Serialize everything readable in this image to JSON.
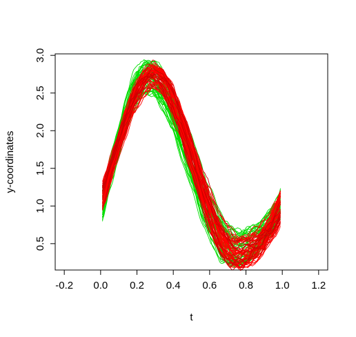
{
  "chart_data": {
    "type": "line",
    "title": "",
    "xlabel": "t",
    "ylabel": "y-coordinates",
    "xlim": [
      -0.25,
      1.25
    ],
    "ylim": [
      0.15,
      3.02
    ],
    "x_ticks": [
      -0.2,
      0.0,
      0.2,
      0.4,
      0.6,
      0.8,
      1.0,
      1.2
    ],
    "x_tick_labels": [
      "-0.2",
      "0.0",
      "0.2",
      "0.4",
      "0.6",
      "0.8",
      "1.0",
      "1.2"
    ],
    "y_ticks": [
      0.5,
      1.0,
      1.5,
      2.0,
      2.5,
      3.0
    ],
    "y_tick_labels": [
      "0.5",
      "1.0",
      "1.5",
      "2.0",
      "2.5",
      "3.0"
    ],
    "grid": false,
    "legend": "none",
    "t_range": [
      0.01,
      0.99
    ],
    "series_groups": [
      {
        "color": "#00dd00",
        "count": 45,
        "peak_t": 0.255,
        "peak_y_range": [
          2.5,
          2.95
        ],
        "trough_t": 0.74,
        "trough_y_range": [
          0.22,
          0.68
        ],
        "start_y_range": [
          0.82,
          1.25
        ],
        "end_y_range": [
          0.85,
          1.22
        ]
      },
      {
        "color": "#ff0000",
        "count": 45,
        "peak_t": 0.285,
        "peak_y_range": [
          2.55,
          2.88
        ],
        "trough_t": 0.755,
        "trough_y_range": [
          0.18,
          0.6
        ],
        "start_y_range": [
          0.95,
          1.3
        ],
        "end_y_range": [
          0.72,
          1.2
        ]
      },
      {
        "color": "#cc0000",
        "count": 10,
        "peak_t": 0.29,
        "peak_y_range": [
          2.6,
          2.9
        ],
        "trough_t": 0.75,
        "trough_y_range": [
          0.2,
          0.55
        ],
        "start_y_range": [
          0.95,
          1.3
        ],
        "end_y_range": [
          0.75,
          1.2
        ]
      }
    ],
    "colors": {
      "green": "#00dd00",
      "red": "#ff0000",
      "dark_red": "#cc0000"
    }
  }
}
